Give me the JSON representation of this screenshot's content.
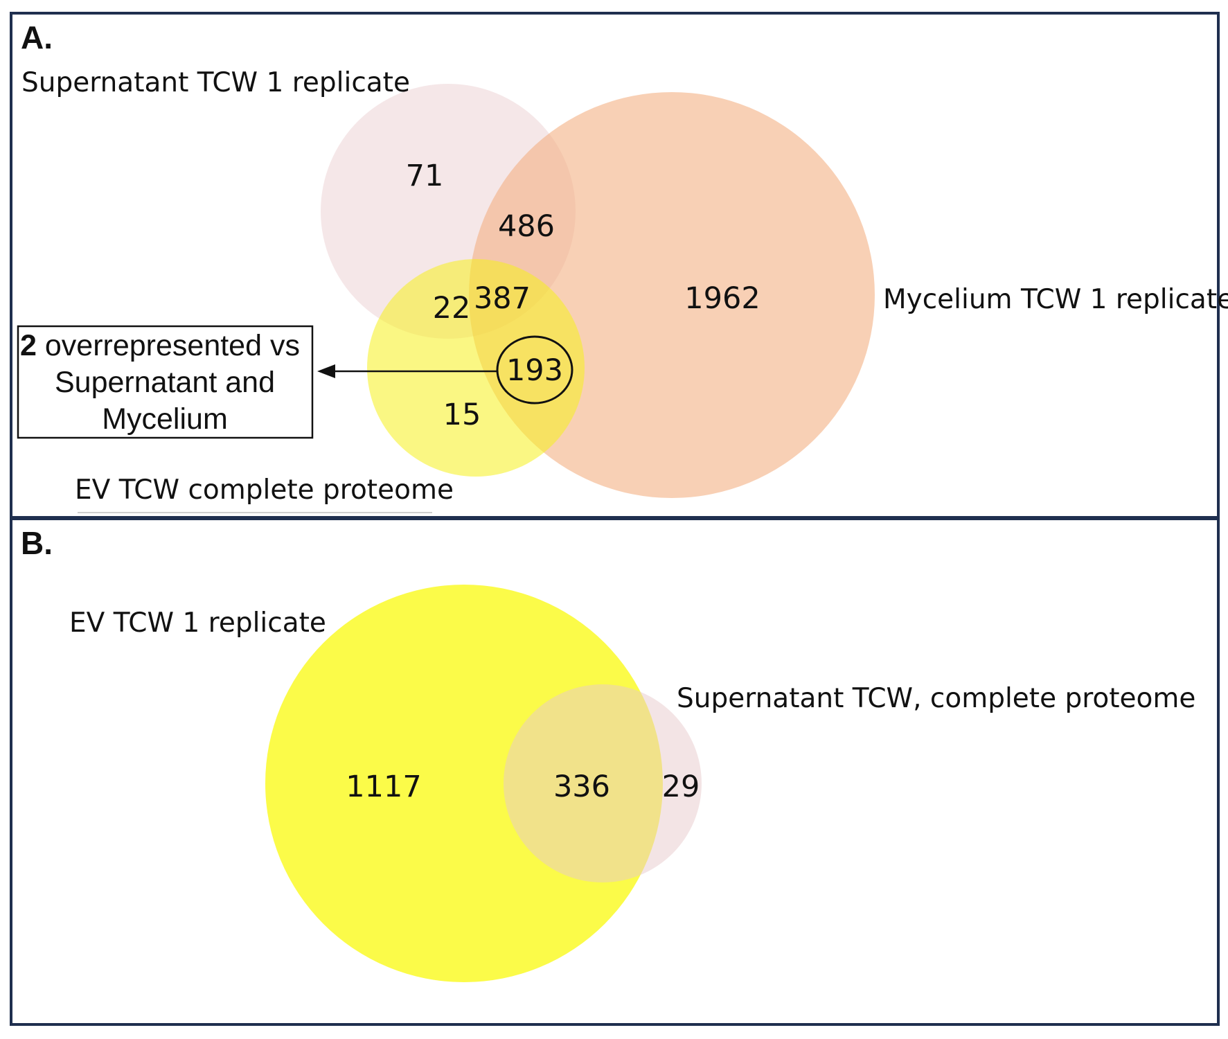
{
  "panel_a": {
    "label": "A.",
    "sets": {
      "supernatant": "Supernatant TCW 1 replicate",
      "mycelium": "Mycelium TCW 1 replicate",
      "ev": "EV TCW complete proteome"
    },
    "regions": {
      "supernatant_only": "71",
      "supernatant_mycelium": "486",
      "supernatant_ev": "22",
      "all_three": "387",
      "mycelium_only": "1962",
      "ev_mycelium": "193",
      "ev_only": "15"
    },
    "note": {
      "bold": "2",
      "line1": " overrepresented vs",
      "line2": "Supernatant and",
      "line3": "Mycelium"
    }
  },
  "panel_b": {
    "label": "B.",
    "sets": {
      "ev": "EV TCW 1 replicate",
      "supernatant": "Supernatant TCW, complete proteome"
    },
    "regions": {
      "ev_only": "1117",
      "overlap": "336",
      "supernatant_only": "29"
    }
  },
  "colors": {
    "frame": "#1f2f4f",
    "supernatant": "#e8c9cc",
    "mycelium": "#f3b184",
    "ev": "#f5f01d",
    "ev_b": "#fbfb3f"
  }
}
